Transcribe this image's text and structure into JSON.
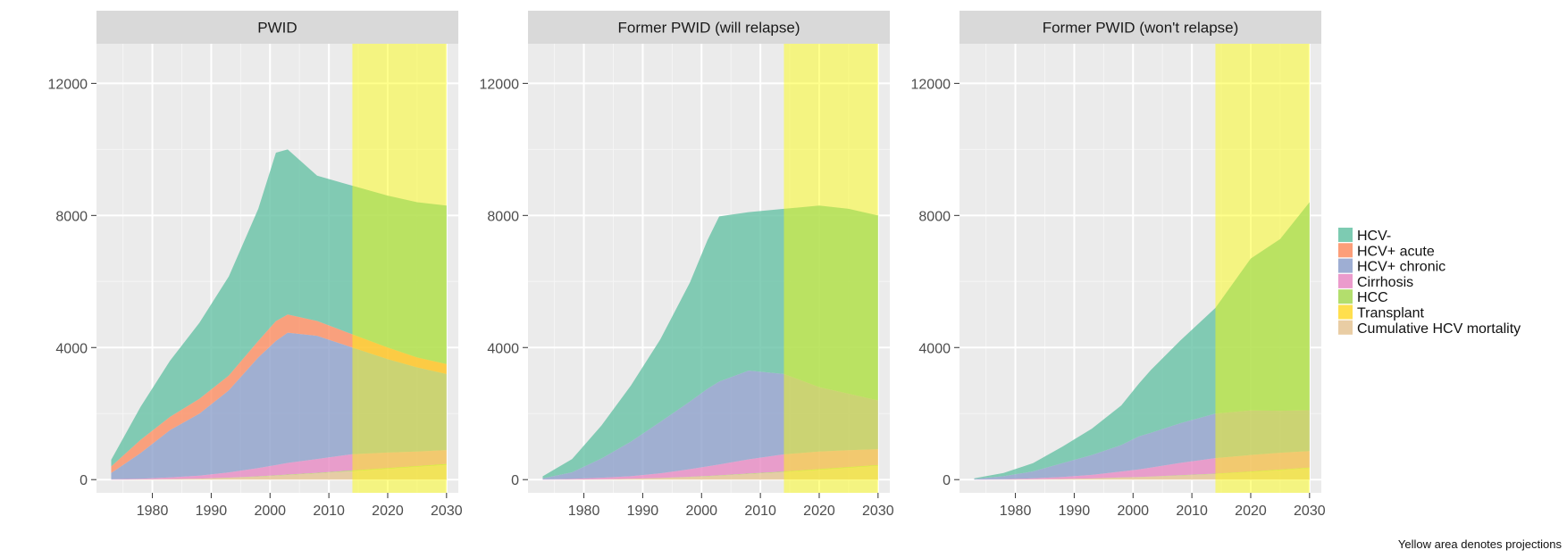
{
  "chart_data": {
    "type": "area",
    "stacked": true,
    "facets": [
      "PWID",
      "Former PWID (will relapse)",
      "Former PWID (won't relapse)"
    ],
    "x": [
      1973,
      1978,
      1983,
      1988,
      1993,
      1998,
      2001,
      2003,
      2008,
      2014,
      2020,
      2025,
      2030
    ],
    "xlim": [
      1970.5,
      2032
    ],
    "ylim": [
      -400,
      13200
    ],
    "xticks": [
      1980,
      1990,
      2000,
      2010,
      2020,
      2030
    ],
    "yticks": [
      0,
      4000,
      8000,
      12000
    ],
    "xtick_labels": [
      "1980",
      "1990",
      "2000",
      "2010",
      "2020",
      "2030"
    ],
    "ytick_labels": [
      "0",
      "4000",
      "8000",
      "12000"
    ],
    "projection_range": [
      2014,
      2030
    ],
    "grid": true,
    "legend_position": "right",
    "legend": [
      {
        "name": "HCV-",
        "color": "#66C2A5"
      },
      {
        "name": "HCV+ acute",
        "color": "#FC8D62"
      },
      {
        "name": "HCV+ chronic",
        "color": "#8DA0CB"
      },
      {
        "name": "Cirrhosis",
        "color": "#E78AC3"
      },
      {
        "name": "HCC",
        "color": "#A6D854"
      },
      {
        "name": "Transplant",
        "color": "#FFD92F"
      },
      {
        "name": "Cumulative HCV mortality",
        "color": "#E5C494"
      }
    ],
    "panels": [
      {
        "title": "PWID",
        "series": [
          {
            "name": "Cumulative HCV mortality",
            "values": [
              0,
              5,
              15,
              30,
              55,
              90,
              120,
              140,
              190,
              260,
              330,
              390,
              450
            ]
          },
          {
            "name": "Transplant",
            "values": [
              0,
              0,
              0,
              0,
              0,
              0,
              0,
              0,
              0,
              0,
              0,
              0,
              0
            ]
          },
          {
            "name": "HCC",
            "values": [
              0,
              0,
              0,
              0,
              5,
              10,
              10,
              15,
              15,
              20,
              20,
              20,
              25
            ]
          },
          {
            "name": "Cirrhosis",
            "values": [
              10,
              20,
              50,
              90,
              160,
              250,
              310,
              350,
              420,
              490,
              470,
              440,
              420
            ]
          },
          {
            "name": "HCV+ chronic",
            "values": [
              190,
              780,
              1435,
              1880,
              2485,
              3350,
              3760,
              3945,
              3730,
              3230,
              2830,
              2550,
              2305
            ]
          },
          {
            "name": "HCV+ acute",
            "values": [
              200,
              400,
              400,
              450,
              450,
              500,
              600,
              550,
              450,
              400,
              350,
              300,
              300
            ]
          },
          {
            "name": "HCV-",
            "values": [
              200,
              1000,
              1700,
              2300,
              3000,
              4000,
              5100,
              5000,
              4400,
              4500,
              4600,
              4700,
              4800
            ]
          }
        ]
      },
      {
        "title": "Former PWID (will relapse)",
        "series": [
          {
            "name": "Cumulative HCV mortality",
            "values": [
              0,
              3,
              10,
              25,
              45,
              80,
              100,
              120,
              170,
              230,
              300,
              360,
              420
            ]
          },
          {
            "name": "Transplant",
            "values": [
              0,
              0,
              0,
              0,
              0,
              0,
              0,
              0,
              0,
              0,
              0,
              0,
              0
            ]
          },
          {
            "name": "HCC",
            "values": [
              0,
              0,
              0,
              0,
              5,
              5,
              10,
              10,
              15,
              15,
              20,
              20,
              20
            ]
          },
          {
            "name": "Cirrhosis",
            "values": [
              5,
              20,
              45,
              80,
              140,
              230,
              290,
              330,
              430,
              520,
              530,
              510,
              480
            ]
          },
          {
            "name": "HCV+ chronic",
            "values": [
              30,
              200,
              585,
              1045,
              1560,
              2045,
              2350,
              2510,
              2685,
              2435,
              1950,
              1710,
              1480
            ]
          },
          {
            "name": "HCV-",
            "values": [
              65,
              400,
              1000,
              1700,
              2500,
              3600,
              4500,
              5000,
              4800,
              5000,
              5500,
              5600,
              5600
            ]
          }
        ]
      },
      {
        "title": "Former PWID (won't relapse)",
        "series": [
          {
            "name": "Cumulative HCV mortality",
            "values": [
              0,
              2,
              8,
              20,
              35,
              60,
              75,
              90,
              125,
              170,
              230,
              290,
              350
            ]
          },
          {
            "name": "Transplant",
            "values": [
              0,
              0,
              0,
              0,
              0,
              0,
              0,
              0,
              0,
              0,
              0,
              0,
              0
            ]
          },
          {
            "name": "HCC",
            "values": [
              0,
              0,
              0,
              0,
              0,
              5,
              5,
              5,
              10,
              10,
              15,
              15,
              15
            ]
          },
          {
            "name": "Cirrhosis",
            "values": [
              2,
              10,
              30,
              60,
              110,
              180,
              230,
              270,
              370,
              470,
              500,
              510,
              500
            ]
          },
          {
            "name": "HCV+ chronic",
            "values": [
              18,
              90,
              210,
              420,
              600,
              800,
              1000,
              1050,
              1200,
              1350,
              1350,
              1270,
              1235
            ]
          },
          {
            "name": "HCV-",
            "values": [
              20,
              100,
              250,
              500,
              800,
              1200,
              1600,
              1900,
              2500,
              3200,
              4600,
              5200,
              6300
            ]
          }
        ]
      }
    ],
    "annotation": "Yellow area denotes projections"
  }
}
